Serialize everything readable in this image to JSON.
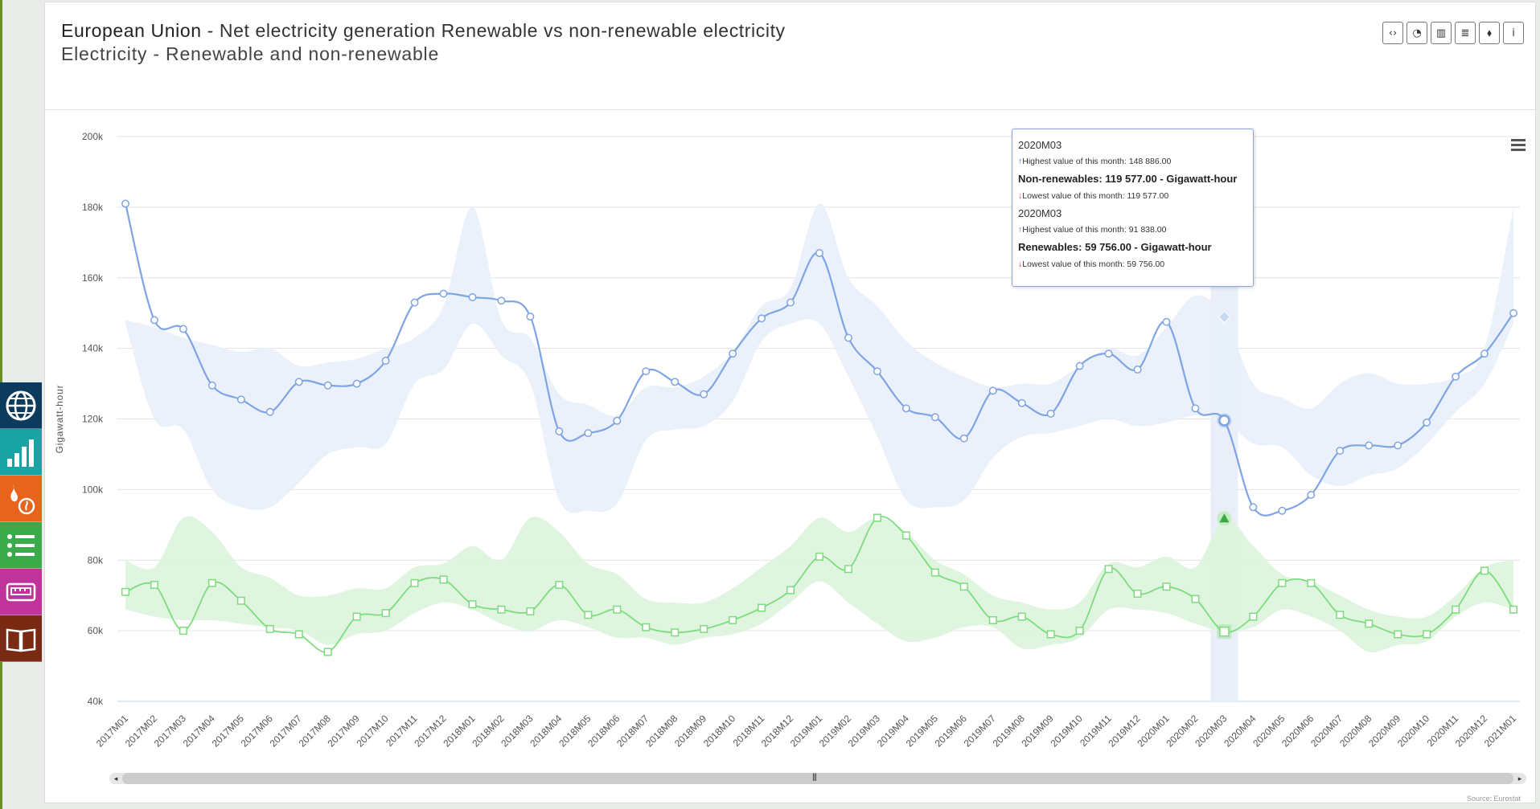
{
  "header": {
    "title_bold": "European Union",
    "title_rest": " - Net electricity generation Renewable vs non-renewable electricity",
    "subtitle": "Electricity - Renewable and non-renewable"
  },
  "toolbar": {
    "buttons": [
      {
        "icon": "code-icon",
        "glyph": "‹›"
      },
      {
        "icon": "pie-chart-icon",
        "glyph": "◔"
      },
      {
        "icon": "bar-chart-icon",
        "glyph": "▥"
      },
      {
        "icon": "database-icon",
        "glyph": "≣"
      },
      {
        "icon": "tag-icon",
        "glyph": "⬧"
      },
      {
        "icon": "info-icon",
        "glyph": "i"
      }
    ]
  },
  "sidebar": {
    "items": [
      {
        "icon": "globe-icon",
        "color": "#0d3b5e"
      },
      {
        "icon": "signal-bars-icon",
        "color": "#1aa3a3"
      },
      {
        "icon": "fire-icon",
        "color": "#e8641c"
      },
      {
        "icon": "list-icon",
        "color": "#3aaa4a"
      },
      {
        "icon": "meter-icon",
        "color": "#c0339a"
      },
      {
        "icon": "book-icon",
        "color": "#7a2a12"
      }
    ]
  },
  "tooltip": {
    "blocks": [
      {
        "period": "2020M03",
        "highest": "Highest value of this month: 148 886.00",
        "main": "Non-renewables: 119 577.00 - Gigawatt-hour",
        "lowest": "Lowest value of this month: 119 577.00"
      },
      {
        "period": "2020M03",
        "highest": "Highest value of this month: 91 838.00",
        "main": "Renewables: 59 756.00 - Gigawatt-hour",
        "lowest": "Lowest value of this month: 59 756.00"
      }
    ]
  },
  "source": "Source: Eurostat",
  "colors": {
    "non_renewables": "#7fa4e3",
    "renewables": "#7ddc7d",
    "band_blue": "#e8f0fa",
    "band_green": "#dcf4dc",
    "highlight": "#e9eef8"
  },
  "chart_data": {
    "type": "line",
    "ylabel": "Gigawatt-hour",
    "ylim": [
      40000,
      200000
    ],
    "yticks": [
      "40k",
      "60k",
      "80k",
      "100k",
      "120k",
      "140k",
      "160k",
      "180k",
      "200k"
    ],
    "categories": [
      "2017M01",
      "2017M02",
      "2017M03",
      "2017M04",
      "2017M05",
      "2017M06",
      "2017M07",
      "2017M08",
      "2017M09",
      "2017M10",
      "2017M11",
      "2017M12",
      "2018M01",
      "2018M02",
      "2018M03",
      "2018M04",
      "2018M05",
      "2018M06",
      "2018M07",
      "2018M08",
      "2018M09",
      "2018M10",
      "2018M11",
      "2018M12",
      "2019M01",
      "2019M02",
      "2019M03",
      "2019M04",
      "2019M05",
      "2019M06",
      "2019M07",
      "2019M08",
      "2019M09",
      "2019M10",
      "2019M11",
      "2019M12",
      "2020M01",
      "2020M02",
      "2020M03",
      "2020M04",
      "2020M05",
      "2020M06",
      "2020M07",
      "2020M08",
      "2020M09",
      "2020M10",
      "2020M11",
      "2020M12",
      "2021M01"
    ],
    "highlight_category": "2020M03",
    "series": [
      {
        "name": "Non-renewables",
        "marker": "circle",
        "values": [
          181000,
          148000,
          145500,
          129500,
          125500,
          122000,
          130500,
          129500,
          130000,
          136500,
          153000,
          155500,
          154500,
          153500,
          149000,
          116500,
          116000,
          119500,
          133500,
          130500,
          127000,
          138500,
          148500,
          153000,
          167000,
          143000,
          133500,
          123000,
          120500,
          114500,
          128000,
          124500,
          121500,
          135000,
          138500,
          134000,
          147500,
          123000,
          119577,
          95000,
          94000,
          98500,
          111000,
          112500,
          112500,
          119000,
          132000,
          138500,
          150000
        ],
        "band_high": [
          148000,
          146000,
          143000,
          141000,
          139000,
          140000,
          135000,
          136000,
          137000,
          140000,
          143000,
          152000,
          180000,
          148000,
          143000,
          127000,
          124000,
          121000,
          129000,
          129000,
          132000,
          139000,
          152000,
          157000,
          181000,
          160000,
          152000,
          142000,
          136000,
          132000,
          129000,
          130000,
          130000,
          135000,
          140000,
          138000,
          146000,
          155000,
          148886,
          130000,
          126000,
          123000,
          130000,
          133000,
          130000,
          130000,
          132000,
          140000,
          180000
        ],
        "band_low": [
          147000,
          120000,
          117000,
          100000,
          95000,
          95000,
          102000,
          110000,
          112000,
          113000,
          130000,
          134000,
          147000,
          138000,
          130000,
          97000,
          94000,
          96000,
          114000,
          117000,
          118000,
          125000,
          142000,
          147000,
          147000,
          132000,
          115000,
          97000,
          95000,
          97000,
          109000,
          115000,
          116000,
          118000,
          120000,
          118000,
          119000,
          121000,
          119577,
          113000,
          112000,
          104000,
          101000,
          104000,
          106000,
          113000,
          122000,
          130000,
          147000
        ]
      },
      {
        "name": "Renewables",
        "marker": "square",
        "values": [
          71000,
          73000,
          60000,
          73500,
          68500,
          60500,
          59000,
          54000,
          64000,
          65000,
          73500,
          74500,
          67500,
          66000,
          65500,
          73000,
          64500,
          66000,
          61000,
          59500,
          60500,
          63000,
          66500,
          71500,
          81000,
          77500,
          92000,
          87000,
          76500,
          72500,
          63000,
          64000,
          59000,
          60000,
          77500,
          70500,
          72500,
          69000,
          59756,
          64000,
          73500,
          73500,
          64500,
          62000,
          59000,
          59000,
          66000,
          77000,
          66000
        ],
        "band_high": [
          80000,
          78000,
          92000,
          88000,
          78000,
          75000,
          70000,
          70000,
          72000,
          72000,
          78000,
          79000,
          84000,
          80000,
          92000,
          88000,
          79000,
          76000,
          69000,
          68000,
          68000,
          72000,
          78000,
          84000,
          92000,
          88000,
          92000,
          88000,
          80000,
          76000,
          70000,
          68000,
          66000,
          68000,
          79000,
          78000,
          81000,
          78000,
          91838,
          84000,
          76000,
          74000,
          70000,
          66000,
          64000,
          64000,
          70000,
          78000,
          80000
        ],
        "band_low": [
          66000,
          64000,
          63000,
          63000,
          62000,
          61000,
          60000,
          56000,
          59000,
          60000,
          65000,
          68000,
          66000,
          62000,
          60000,
          63000,
          61000,
          58000,
          58000,
          56000,
          58000,
          59000,
          62000,
          68000,
          74000,
          68000,
          62000,
          57000,
          58000,
          61000,
          61000,
          55000,
          56000,
          58000,
          66000,
          66000,
          65000,
          62000,
          59756,
          61000,
          66000,
          64000,
          60000,
          54000,
          56000,
          57000,
          64000,
          68000,
          66000
        ]
      }
    ]
  }
}
